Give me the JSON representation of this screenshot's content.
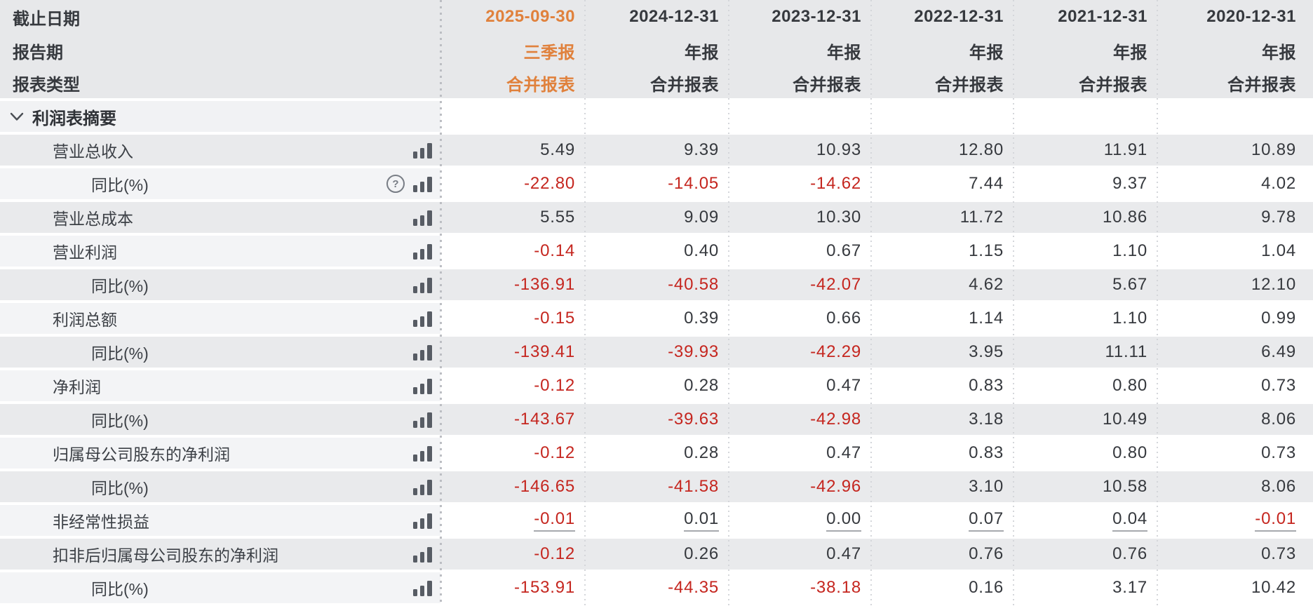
{
  "colors": {
    "accent_orange": "#E0813C",
    "negative_red": "#C5261F",
    "text_dark": "#36393E",
    "stripe_gray": "#E9EAEC",
    "header_gray": "#E7E8EA",
    "label_tint": "#F3F4F6",
    "icon_gray": "#575C64"
  },
  "icons": {
    "help_glyph": "?",
    "bar_chart": "bar-chart-icon",
    "chevron": "chevron-down-icon"
  },
  "table": {
    "header_rows": [
      {
        "label": "截止日期",
        "values": [
          "2025-09-30",
          "2024-12-31",
          "2023-12-31",
          "2022-12-31",
          "2021-12-31",
          "2020-12-31"
        ]
      },
      {
        "label": "报告期",
        "values": [
          "三季报",
          "年报",
          "年报",
          "年报",
          "年报",
          "年报"
        ]
      },
      {
        "label": "报表类型",
        "values": [
          "合并报表",
          "合并报表",
          "合并报表",
          "合并报表",
          "合并报表",
          "合并报表"
        ]
      }
    ],
    "highlight_column_index": 0,
    "section": {
      "label": "利润表摘要",
      "expanded": true
    },
    "rows": [
      {
        "label": "营业总收入",
        "indent": 1,
        "help": false,
        "underline": false,
        "values": [
          "5.49",
          "9.39",
          "10.93",
          "12.80",
          "11.91",
          "10.89"
        ]
      },
      {
        "label": "同比(%)",
        "indent": 2,
        "help": true,
        "underline": false,
        "values": [
          "-22.80",
          "-14.05",
          "-14.62",
          "7.44",
          "9.37",
          "4.02"
        ]
      },
      {
        "label": "营业总成本",
        "indent": 1,
        "help": false,
        "underline": false,
        "values": [
          "5.55",
          "9.09",
          "10.30",
          "11.72",
          "10.86",
          "9.78"
        ]
      },
      {
        "label": "营业利润",
        "indent": 1,
        "help": false,
        "underline": false,
        "values": [
          "-0.14",
          "0.40",
          "0.67",
          "1.15",
          "1.10",
          "1.04"
        ]
      },
      {
        "label": "同比(%)",
        "indent": 2,
        "help": false,
        "underline": false,
        "values": [
          "-136.91",
          "-40.58",
          "-42.07",
          "4.62",
          "5.67",
          "12.10"
        ]
      },
      {
        "label": "利润总额",
        "indent": 1,
        "help": false,
        "underline": false,
        "values": [
          "-0.15",
          "0.39",
          "0.66",
          "1.14",
          "1.10",
          "0.99"
        ]
      },
      {
        "label": "同比(%)",
        "indent": 2,
        "help": false,
        "underline": false,
        "values": [
          "-139.41",
          "-39.93",
          "-42.29",
          "3.95",
          "11.11",
          "6.49"
        ]
      },
      {
        "label": "净利润",
        "indent": 1,
        "help": false,
        "underline": false,
        "values": [
          "-0.12",
          "0.28",
          "0.47",
          "0.83",
          "0.80",
          "0.73"
        ]
      },
      {
        "label": "同比(%)",
        "indent": 2,
        "help": false,
        "underline": false,
        "values": [
          "-143.67",
          "-39.63",
          "-42.98",
          "3.18",
          "10.49",
          "8.06"
        ]
      },
      {
        "label": "归属母公司股东的净利润",
        "indent": 1,
        "help": false,
        "underline": false,
        "values": [
          "-0.12",
          "0.28",
          "0.47",
          "0.83",
          "0.80",
          "0.73"
        ]
      },
      {
        "label": "同比(%)",
        "indent": 2,
        "help": false,
        "underline": false,
        "values": [
          "-146.65",
          "-41.58",
          "-42.96",
          "3.10",
          "10.58",
          "8.06"
        ]
      },
      {
        "label": "非经常性损益",
        "indent": 1,
        "help": false,
        "underline": true,
        "values": [
          "-0.01",
          "0.01",
          "0.00",
          "0.07",
          "0.04",
          "-0.01"
        ]
      },
      {
        "label": "扣非后归属母公司股东的净利润",
        "indent": 1,
        "help": false,
        "underline": false,
        "values": [
          "-0.12",
          "0.26",
          "0.47",
          "0.76",
          "0.76",
          "0.73"
        ]
      },
      {
        "label": "同比(%)",
        "indent": 2,
        "help": false,
        "underline": false,
        "values": [
          "-153.91",
          "-44.35",
          "-38.18",
          "0.16",
          "3.17",
          "10.42"
        ]
      }
    ]
  }
}
